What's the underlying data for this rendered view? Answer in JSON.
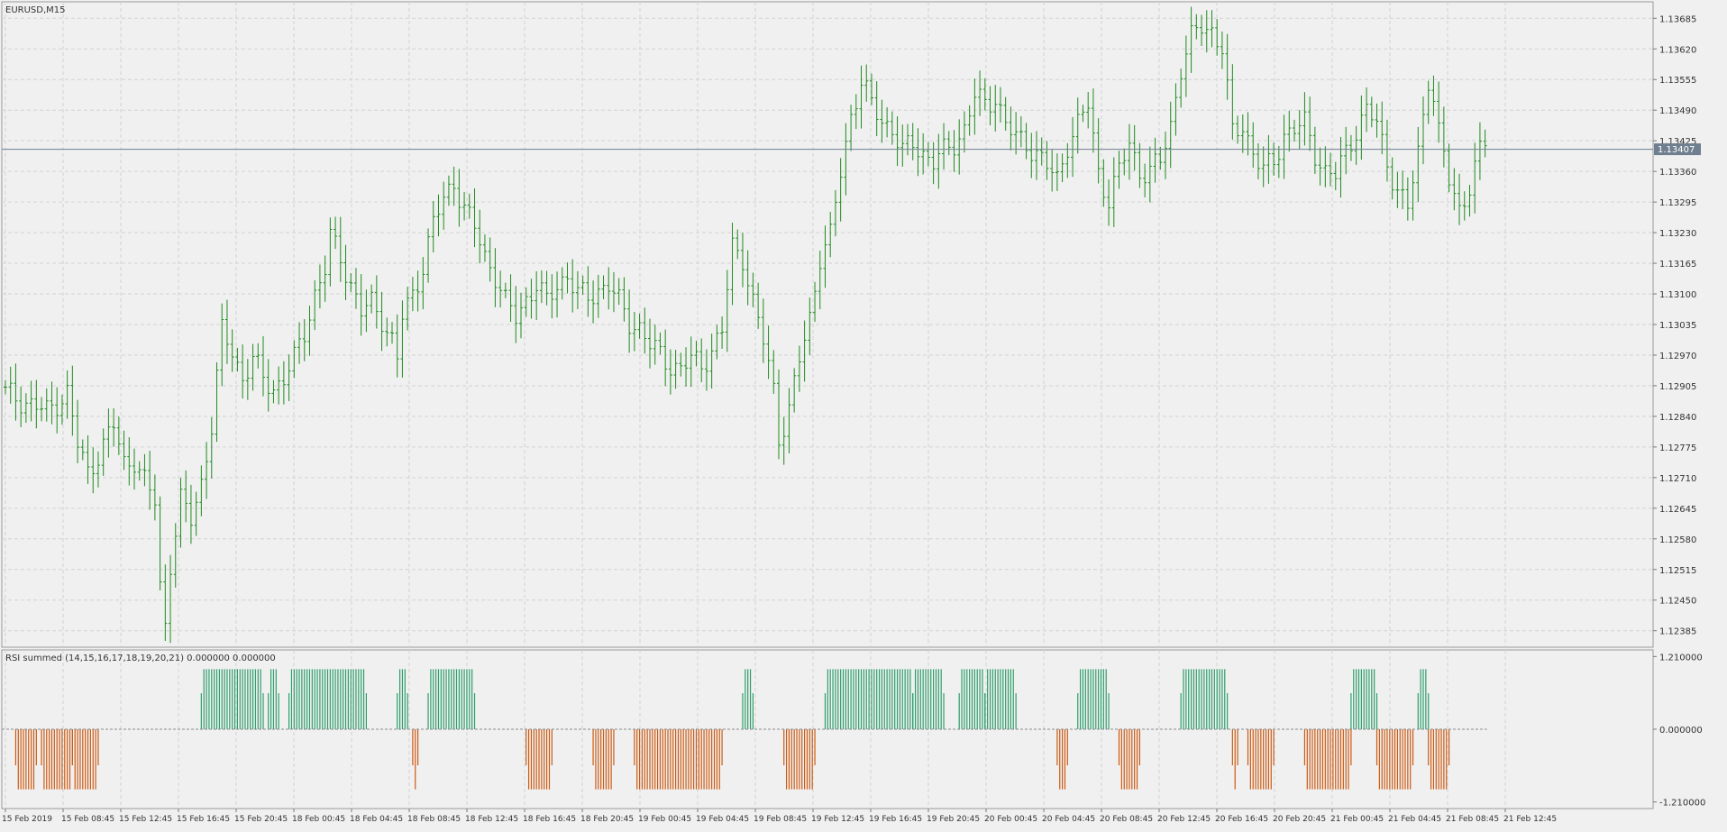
{
  "window": {
    "symbol_label": "EURUSD,M15"
  },
  "indicator": {
    "label": "RSI summed (14,15,16,17,18,19,20,21) 0.000000 0.000000"
  },
  "colors": {
    "background": "#f0f0f0",
    "grid": "#d2d2d2",
    "candle": "#1f8a1f",
    "histogram_positive": "#2e9e6b",
    "histogram_negative": "#cc5a12",
    "current_price_line": "#6f7f8f",
    "current_price_badge": "#6f7f8f"
  },
  "price_axis": {
    "labels": [
      "1.13685",
      "1.13620",
      "1.13555",
      "1.13490",
      "1.13425",
      "1.13360",
      "1.13295",
      "1.13230",
      "1.13165",
      "1.13100",
      "1.13035",
      "1.12970",
      "1.12905",
      "1.12840",
      "1.12775",
      "1.12710",
      "1.12645",
      "1.12580",
      "1.12515",
      "1.12450",
      "1.12385"
    ],
    "current_price": "1.13407"
  },
  "indicator_axis": {
    "labels": [
      "1.210000",
      "0.000000",
      "-1.210000"
    ]
  },
  "time_axis": {
    "labels": [
      "15 Feb 2019",
      "15 Feb 08:45",
      "15 Feb 12:45",
      "15 Feb 16:45",
      "15 Feb 20:45",
      "18 Feb 00:45",
      "18 Feb 04:45",
      "18 Feb 08:45",
      "18 Feb 12:45",
      "18 Feb 16:45",
      "18 Feb 20:45",
      "19 Feb 00:45",
      "19 Feb 04:45",
      "19 Feb 08:45",
      "19 Feb 12:45",
      "19 Feb 16:45",
      "19 Feb 20:45",
      "20 Feb 00:45",
      "20 Feb 04:45",
      "20 Feb 08:45",
      "20 Feb 12:45",
      "20 Feb 16:45",
      "20 Feb 20:45",
      "21 Feb 00:45",
      "21 Feb 04:45",
      "21 Feb 08:45",
      "21 Feb 12:45"
    ]
  },
  "chart_data": {
    "type": "candlestick",
    "symbol": "EURUSD",
    "timeframe": "M15",
    "price_ylim": [
      1.1235,
      1.1372
    ],
    "indicator_ylim": [
      -1.32,
      1.32
    ],
    "price_path": [
      [
        0,
        1.1289
      ],
      [
        4,
        1.1287
      ],
      [
        8,
        1.1285
      ],
      [
        12,
        1.1289
      ],
      [
        14,
        1.1278
      ],
      [
        16,
        1.1272
      ],
      [
        18,
        1.1276
      ],
      [
        21,
        1.1282
      ],
      [
        23,
        1.1274
      ],
      [
        25,
        1.1275
      ],
      [
        27,
        1.127
      ],
      [
        29,
        1.1266
      ],
      [
        30,
        1.1248
      ],
      [
        31,
        1.124
      ],
      [
        32,
        1.1253
      ],
      [
        34,
        1.1266
      ],
      [
        36,
        1.1262
      ],
      [
        38,
        1.127
      ],
      [
        40,
        1.1282
      ],
      [
        42,
        1.1302
      ],
      [
        44,
        1.1298
      ],
      [
        46,
        1.1292
      ],
      [
        48,
        1.1296
      ],
      [
        50,
        1.1292
      ],
      [
        52,
        1.129
      ],
      [
        54,
        1.1292
      ],
      [
        56,
        1.1296
      ],
      [
        58,
        1.1302
      ],
      [
        60,
        1.131
      ],
      [
        62,
        1.1315
      ],
      [
        63,
        1.1322
      ],
      [
        65,
        1.1318
      ],
      [
        67,
        1.1312
      ],
      [
        69,
        1.1306
      ],
      [
        71,
        1.1308
      ],
      [
        73,
        1.1305
      ],
      [
        75,
        1.13
      ],
      [
        76,
        1.1296
      ],
      [
        77,
        1.1305
      ],
      [
        79,
        1.131
      ],
      [
        81,
        1.1316
      ],
      [
        83,
        1.1325
      ],
      [
        85,
        1.133
      ],
      [
        87,
        1.1334
      ],
      [
        89,
        1.1328
      ],
      [
        91,
        1.1324
      ],
      [
        93,
        1.1318
      ],
      [
        95,
        1.1314
      ],
      [
        97,
        1.1308
      ],
      [
        99,
        1.1305
      ],
      [
        101,
        1.1309
      ],
      [
        103,
        1.1312
      ],
      [
        105,
        1.1308
      ],
      [
        107,
        1.1312
      ],
      [
        109,
        1.1314
      ],
      [
        111,
        1.131
      ],
      [
        113,
        1.1309
      ],
      [
        115,
        1.1311
      ],
      [
        117,
        1.1312
      ],
      [
        119,
        1.1308
      ],
      [
        121,
        1.1304
      ],
      [
        123,
        1.1303
      ],
      [
        125,
        1.1299
      ],
      [
        127,
        1.1297
      ],
      [
        129,
        1.1295
      ],
      [
        131,
        1.1294
      ],
      [
        133,
        1.1296
      ],
      [
        135,
        1.1295
      ],
      [
        137,
        1.1298
      ],
      [
        139,
        1.1302
      ],
      [
        141,
        1.132
      ],
      [
        143,
        1.1318
      ],
      [
        145,
        1.1308
      ],
      [
        147,
        1.13
      ],
      [
        149,
        1.129
      ],
      [
        150,
        1.128
      ],
      [
        151,
        1.1282
      ],
      [
        152,
        1.1285
      ],
      [
        154,
        1.1296
      ],
      [
        156,
        1.1305
      ],
      [
        158,
        1.1318
      ],
      [
        160,
        1.1322
      ],
      [
        162,
        1.1336
      ],
      [
        164,
        1.1348
      ],
      [
        166,
        1.1355
      ],
      [
        168,
        1.135
      ],
      [
        170,
        1.1347
      ],
      [
        172,
        1.1345
      ],
      [
        174,
        1.134
      ],
      [
        176,
        1.1342
      ],
      [
        178,
        1.134
      ],
      [
        180,
        1.1338
      ],
      [
        182,
        1.134
      ],
      [
        184,
        1.1342
      ],
      [
        186,
        1.1345
      ],
      [
        188,
        1.1352
      ],
      [
        190,
        1.135
      ],
      [
        192,
        1.1352
      ],
      [
        194,
        1.1346
      ],
      [
        196,
        1.1343
      ],
      [
        198,
        1.1342
      ],
      [
        200,
        1.134
      ],
      [
        202,
        1.1337
      ],
      [
        204,
        1.1334
      ],
      [
        206,
        1.1342
      ],
      [
        208,
        1.1346
      ],
      [
        210,
        1.135
      ],
      [
        212,
        1.1336
      ],
      [
        214,
        1.133
      ],
      [
        216,
        1.1336
      ],
      [
        218,
        1.1342
      ],
      [
        220,
        1.1336
      ],
      [
        222,
        1.1336
      ],
      [
        224,
        1.1338
      ],
      [
        226,
        1.1346
      ],
      [
        228,
        1.1358
      ],
      [
        230,
        1.1364
      ],
      [
        232,
        1.1367
      ],
      [
        234,
        1.1366
      ],
      [
        236,
        1.1362
      ],
      [
        238,
        1.1344
      ],
      [
        240,
        1.1346
      ],
      [
        242,
        1.134
      ],
      [
        244,
        1.1336
      ],
      [
        246,
        1.1338
      ],
      [
        248,
        1.1344
      ],
      [
        250,
        1.1345
      ],
      [
        252,
        1.1346
      ],
      [
        254,
        1.134
      ],
      [
        256,
        1.1336
      ],
      [
        258,
        1.1335
      ],
      [
        260,
        1.134
      ],
      [
        262,
        1.1345
      ],
      [
        264,
        1.1349
      ],
      [
        266,
        1.1346
      ],
      [
        268,
        1.1338
      ],
      [
        270,
        1.1332
      ],
      [
        272,
        1.1328
      ],
      [
        274,
        1.134
      ],
      [
        276,
        1.1356
      ],
      [
        277,
        1.1352
      ],
      [
        278,
        1.1344
      ],
      [
        280,
        1.1334
      ],
      [
        282,
        1.1328
      ],
      [
        284,
        1.1333
      ],
      [
        286,
        1.134
      ],
      [
        287,
        1.1342
      ]
    ],
    "rsi_summed_segments": [
      {
        "from": 2,
        "to": 6,
        "value": -1.0
      },
      {
        "from": 7,
        "to": 13,
        "value": -1.0
      },
      {
        "from": 13,
        "to": 18,
        "value": -1.0
      },
      {
        "from": 38,
        "to": 50,
        "value": 1.0
      },
      {
        "from": 51,
        "to": 53,
        "value": 1.0
      },
      {
        "from": 55,
        "to": 70,
        "value": 1.0
      },
      {
        "from": 76,
        "to": 78,
        "value": 1.0
      },
      {
        "from": 79,
        "to": 80,
        "value": -1.0
      },
      {
        "from": 82,
        "to": 91,
        "value": 1.0
      },
      {
        "from": 101,
        "to": 106,
        "value": -1.0
      },
      {
        "from": 114,
        "to": 118,
        "value": -1.0
      },
      {
        "from": 122,
        "to": 139,
        "value": -1.0
      },
      {
        "from": 143,
        "to": 145,
        "value": 1.0
      },
      {
        "from": 151,
        "to": 157,
        "value": -1.0
      },
      {
        "from": 159,
        "to": 176,
        "value": 1.0
      },
      {
        "from": 176,
        "to": 182,
        "value": 1.0
      },
      {
        "from": 185,
        "to": 190,
        "value": 1.0
      },
      {
        "from": 190,
        "to": 196,
        "value": 1.0
      },
      {
        "from": 204,
        "to": 206,
        "value": -1.0
      },
      {
        "from": 208,
        "to": 214,
        "value": 1.0
      },
      {
        "from": 216,
        "to": 220,
        "value": -1.0
      },
      {
        "from": 228,
        "to": 237,
        "value": 1.0
      },
      {
        "from": 238,
        "to": 239,
        "value": -1.0
      },
      {
        "from": 241,
        "to": 246,
        "value": -1.0
      },
      {
        "from": 252,
        "to": 261,
        "value": -1.0
      },
      {
        "from": 261,
        "to": 266,
        "value": 1.0
      },
      {
        "from": 266,
        "to": 273,
        "value": -1.0
      },
      {
        "from": 274,
        "to": 276,
        "value": 1.0
      },
      {
        "from": 276,
        "to": 280,
        "value": -1.0
      }
    ]
  }
}
